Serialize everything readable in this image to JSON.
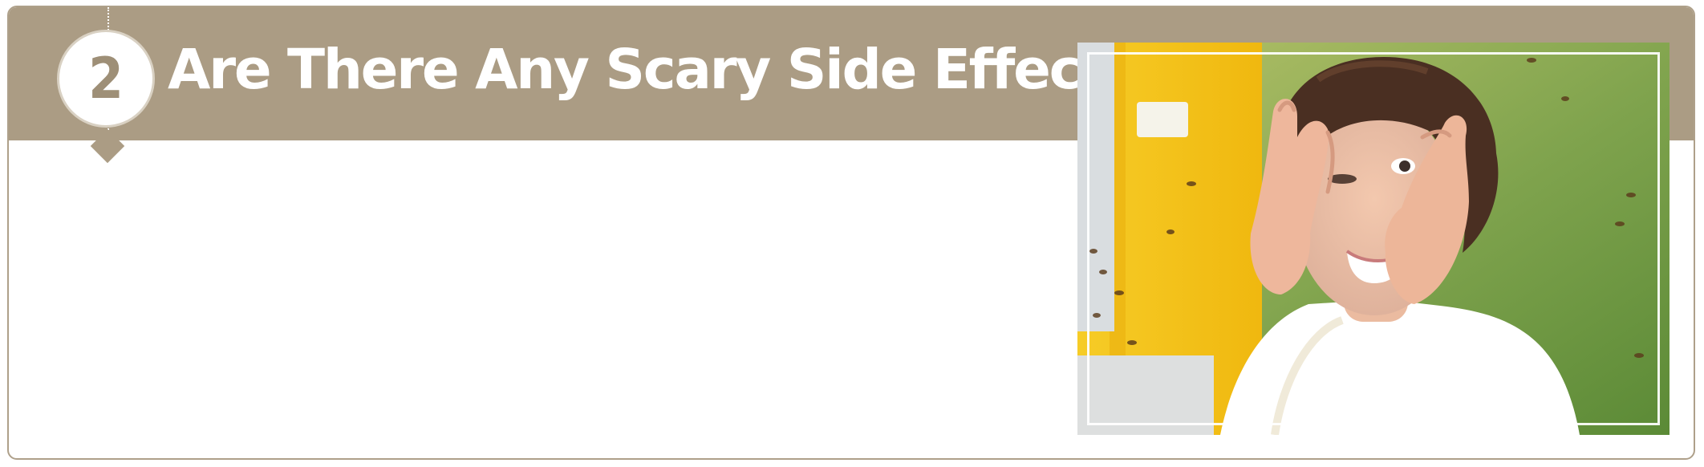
{
  "section": {
    "number": "2",
    "title": "Are There Any Scary Side Effects?"
  },
  "image": {
    "subject": "woman-covering-face-near-beehive",
    "frame_color": "#ffffff"
  },
  "colors": {
    "header": "#ab9c84",
    "card_border": "#aea08a",
    "title_text": "#ffffff",
    "badge_fill": "#ffffff",
    "badge_text": "#9e8f77"
  }
}
